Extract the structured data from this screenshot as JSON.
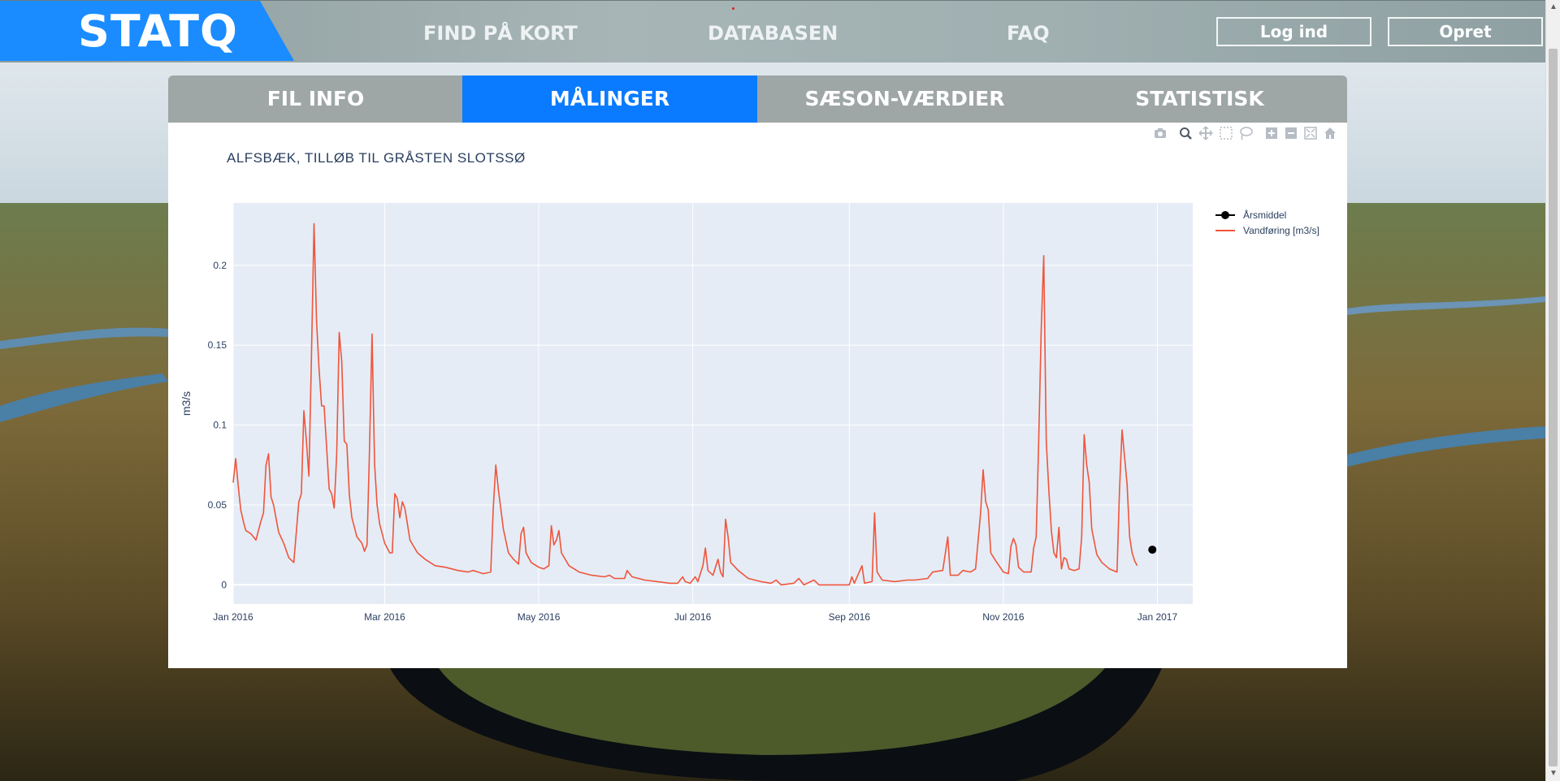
{
  "header": {
    "logo": "STATQ",
    "nav": [
      "FIND PÅ KORT",
      "DATABASEN",
      "FAQ"
    ],
    "login_label": "Log ind",
    "signup_label": "Opret"
  },
  "tabs": [
    {
      "label": "FIL INFO",
      "active": false
    },
    {
      "label": "MÅLINGER",
      "active": true
    },
    {
      "label": "SÆSON-VÆRDIER",
      "active": false
    },
    {
      "label": "STATISTISK",
      "active": false
    }
  ],
  "modebar_icons": [
    "camera-icon",
    "zoom-icon",
    "pan-icon",
    "box-select-icon",
    "lasso-icon",
    "zoom-in-icon",
    "zoom-out-icon",
    "autoscale-icon",
    "reset-axes-icon"
  ],
  "colors": {
    "accent": "#0a7bff",
    "series_line": "#ef553b",
    "plot_bg": "#e5ecf6",
    "marker": "#000000"
  },
  "chart_data": {
    "type": "line",
    "title": "ALFSBÆK, TILLØB TIL GRÅSTEN SLOTSSØ",
    "ylabel": "m3/s",
    "xlabel": "",
    "xlim": [
      "2016-01-01",
      "2017-01-15"
    ],
    "ylim": [
      -0.012,
      0.239
    ],
    "x_ticks": [
      "2016-01-01",
      "2016-03-01",
      "2016-05-01",
      "2016-07-01",
      "2016-09-01",
      "2016-11-01",
      "2017-01-01"
    ],
    "x_tick_labels": [
      "Jan 2016",
      "Mar 2016",
      "May 2016",
      "Jul 2016",
      "Sep 2016",
      "Nov 2016",
      "Jan 2017"
    ],
    "y_ticks": [
      0,
      0.05,
      0.1,
      0.15,
      0.2
    ],
    "y_tick_labels": [
      "0",
      "0.05",
      "0.1",
      "0.15",
      "0.2"
    ],
    "grid": true,
    "legend_position": "top-right",
    "series": [
      {
        "name": "Årsmiddel",
        "type": "markers+lines",
        "color": "#000000",
        "points": [
          [
            "2016-12-30",
            0.022
          ]
        ]
      },
      {
        "name": "Vandføring [m3/s]",
        "type": "line",
        "color": "#ef553b",
        "points": [
          [
            "2016-01-01",
            0.064
          ],
          [
            "2016-01-02",
            0.079
          ],
          [
            "2016-01-03",
            0.062
          ],
          [
            "2016-01-04",
            0.047
          ],
          [
            "2016-01-05",
            0.04
          ],
          [
            "2016-01-06",
            0.034
          ],
          [
            "2016-01-08",
            0.032
          ],
          [
            "2016-01-10",
            0.028
          ],
          [
            "2016-01-12",
            0.04
          ],
          [
            "2016-01-13",
            0.045
          ],
          [
            "2016-01-14",
            0.075
          ],
          [
            "2016-01-15",
            0.082
          ],
          [
            "2016-01-16",
            0.055
          ],
          [
            "2016-01-17",
            0.05
          ],
          [
            "2016-01-19",
            0.033
          ],
          [
            "2016-01-21",
            0.026
          ],
          [
            "2016-01-23",
            0.017
          ],
          [
            "2016-01-25",
            0.014
          ],
          [
            "2016-01-27",
            0.052
          ],
          [
            "2016-01-28",
            0.057
          ],
          [
            "2016-01-29",
            0.109
          ],
          [
            "2016-01-30",
            0.09
          ],
          [
            "2016-01-31",
            0.068
          ],
          [
            "2016-02-01",
            0.142
          ],
          [
            "2016-02-02",
            0.226
          ],
          [
            "2016-02-03",
            0.165
          ],
          [
            "2016-02-04",
            0.135
          ],
          [
            "2016-02-05",
            0.112
          ],
          [
            "2016-02-06",
            0.112
          ],
          [
            "2016-02-08",
            0.06
          ],
          [
            "2016-02-09",
            0.057
          ],
          [
            "2016-02-10",
            0.048
          ],
          [
            "2016-02-11",
            0.082
          ],
          [
            "2016-02-12",
            0.158
          ],
          [
            "2016-02-13",
            0.14
          ],
          [
            "2016-02-14",
            0.09
          ],
          [
            "2016-02-15",
            0.088
          ],
          [
            "2016-02-16",
            0.056
          ],
          [
            "2016-02-17",
            0.042
          ],
          [
            "2016-02-19",
            0.03
          ],
          [
            "2016-02-21",
            0.026
          ],
          [
            "2016-02-22",
            0.021
          ],
          [
            "2016-02-23",
            0.025
          ],
          [
            "2016-02-24",
            0.085
          ],
          [
            "2016-02-25",
            0.157
          ],
          [
            "2016-02-26",
            0.076
          ],
          [
            "2016-02-27",
            0.05
          ],
          [
            "2016-02-28",
            0.038
          ],
          [
            "2016-03-01",
            0.026
          ],
          [
            "2016-03-03",
            0.02
          ],
          [
            "2016-03-04",
            0.02
          ],
          [
            "2016-03-05",
            0.057
          ],
          [
            "2016-03-06",
            0.054
          ],
          [
            "2016-03-07",
            0.042
          ],
          [
            "2016-03-08",
            0.052
          ],
          [
            "2016-03-09",
            0.048
          ],
          [
            "2016-03-11",
            0.028
          ],
          [
            "2016-03-14",
            0.02
          ],
          [
            "2016-03-17",
            0.016
          ],
          [
            "2016-03-21",
            0.012
          ],
          [
            "2016-03-25",
            0.011
          ],
          [
            "2016-03-30",
            0.009
          ],
          [
            "2016-04-03",
            0.008
          ],
          [
            "2016-04-05",
            0.009
          ],
          [
            "2016-04-07",
            0.008
          ],
          [
            "2016-04-09",
            0.007
          ],
          [
            "2016-04-12",
            0.008
          ],
          [
            "2016-04-13",
            0.048
          ],
          [
            "2016-04-14",
            0.075
          ],
          [
            "2016-04-15",
            0.06
          ],
          [
            "2016-04-17",
            0.035
          ],
          [
            "2016-04-19",
            0.02
          ],
          [
            "2016-04-21",
            0.016
          ],
          [
            "2016-04-23",
            0.013
          ],
          [
            "2016-04-24",
            0.032
          ],
          [
            "2016-04-25",
            0.036
          ],
          [
            "2016-04-26",
            0.02
          ],
          [
            "2016-04-28",
            0.014
          ],
          [
            "2016-05-01",
            0.011
          ],
          [
            "2016-05-03",
            0.01
          ],
          [
            "2016-05-05",
            0.012
          ],
          [
            "2016-05-06",
            0.037
          ],
          [
            "2016-05-07",
            0.025
          ],
          [
            "2016-05-08",
            0.028
          ],
          [
            "2016-05-09",
            0.034
          ],
          [
            "2016-05-10",
            0.02
          ],
          [
            "2016-05-13",
            0.012
          ],
          [
            "2016-05-17",
            0.008
          ],
          [
            "2016-05-22",
            0.006
          ],
          [
            "2016-05-27",
            0.005
          ],
          [
            "2016-05-29",
            0.006
          ],
          [
            "2016-05-31",
            0.004
          ],
          [
            "2016-06-04",
            0.004
          ],
          [
            "2016-06-05",
            0.009
          ],
          [
            "2016-06-07",
            0.005
          ],
          [
            "2016-06-12",
            0.003
          ],
          [
            "2016-06-17",
            0.002
          ],
          [
            "2016-06-22",
            0.001
          ],
          [
            "2016-06-25",
            0.001
          ],
          [
            "2016-06-26",
            0.003
          ],
          [
            "2016-06-27",
            0.005
          ],
          [
            "2016-06-28",
            0.002
          ],
          [
            "2016-06-30",
            0.001
          ],
          [
            "2016-07-02",
            0.005
          ],
          [
            "2016-07-03",
            0.002
          ],
          [
            "2016-07-05",
            0.012
          ],
          [
            "2016-07-06",
            0.023
          ],
          [
            "2016-07-07",
            0.009
          ],
          [
            "2016-07-09",
            0.006
          ],
          [
            "2016-07-11",
            0.016
          ],
          [
            "2016-07-12",
            0.008
          ],
          [
            "2016-07-13",
            0.005
          ],
          [
            "2016-07-14",
            0.041
          ],
          [
            "2016-07-15",
            0.03
          ],
          [
            "2016-07-16",
            0.014
          ],
          [
            "2016-07-19",
            0.009
          ],
          [
            "2016-07-23",
            0.004
          ],
          [
            "2016-07-28",
            0.002
          ],
          [
            "2016-08-01",
            0.001
          ],
          [
            "2016-08-03",
            0.003
          ],
          [
            "2016-08-05",
            0.0
          ],
          [
            "2016-08-10",
            0.001
          ],
          [
            "2016-08-12",
            0.004
          ],
          [
            "2016-08-14",
            0.0
          ],
          [
            "2016-08-18",
            0.003
          ],
          [
            "2016-08-20",
            0.0
          ],
          [
            "2016-08-25",
            0.0
          ],
          [
            "2016-08-31",
            0.0
          ],
          [
            "2016-09-01",
            0.0
          ],
          [
            "2016-09-02",
            0.005
          ],
          [
            "2016-09-03",
            0.001
          ],
          [
            "2016-09-06",
            0.012
          ],
          [
            "2016-09-07",
            0.001
          ],
          [
            "2016-09-10",
            0.002
          ],
          [
            "2016-09-11",
            0.045
          ],
          [
            "2016-09-12",
            0.008
          ],
          [
            "2016-09-14",
            0.003
          ],
          [
            "2016-09-19",
            0.002
          ],
          [
            "2016-09-24",
            0.003
          ],
          [
            "2016-09-27",
            0.003
          ],
          [
            "2016-10-02",
            0.004
          ],
          [
            "2016-10-04",
            0.008
          ],
          [
            "2016-10-08",
            0.009
          ],
          [
            "2016-10-10",
            0.03
          ],
          [
            "2016-10-11",
            0.006
          ],
          [
            "2016-10-14",
            0.006
          ],
          [
            "2016-10-16",
            0.009
          ],
          [
            "2016-10-19",
            0.008
          ],
          [
            "2016-10-21",
            0.01
          ],
          [
            "2016-10-23",
            0.045
          ],
          [
            "2016-10-24",
            0.072
          ],
          [
            "2016-10-25",
            0.052
          ],
          [
            "2016-10-26",
            0.047
          ],
          [
            "2016-10-27",
            0.02
          ],
          [
            "2016-10-29",
            0.015
          ],
          [
            "2016-11-01",
            0.008
          ],
          [
            "2016-11-03",
            0.007
          ],
          [
            "2016-11-04",
            0.024
          ],
          [
            "2016-11-05",
            0.029
          ],
          [
            "2016-11-06",
            0.025
          ],
          [
            "2016-11-07",
            0.011
          ],
          [
            "2016-11-09",
            0.008
          ],
          [
            "2016-11-12",
            0.008
          ],
          [
            "2016-11-13",
            0.023
          ],
          [
            "2016-11-14",
            0.03
          ],
          [
            "2016-11-15",
            0.09
          ],
          [
            "2016-11-16",
            0.16
          ],
          [
            "2016-11-17",
            0.206
          ],
          [
            "2016-11-18",
            0.09
          ],
          [
            "2016-11-19",
            0.06
          ],
          [
            "2016-11-20",
            0.034
          ],
          [
            "2016-11-21",
            0.02
          ],
          [
            "2016-11-22",
            0.017
          ],
          [
            "2016-11-23",
            0.036
          ],
          [
            "2016-11-24",
            0.01
          ],
          [
            "2016-11-25",
            0.017
          ],
          [
            "2016-11-26",
            0.016
          ],
          [
            "2016-11-27",
            0.01
          ],
          [
            "2016-11-29",
            0.009
          ],
          [
            "2016-12-01",
            0.01
          ],
          [
            "2016-12-02",
            0.03
          ],
          [
            "2016-12-03",
            0.094
          ],
          [
            "2016-12-04",
            0.075
          ],
          [
            "2016-12-05",
            0.064
          ],
          [
            "2016-12-06",
            0.035
          ],
          [
            "2016-12-08",
            0.019
          ],
          [
            "2016-12-10",
            0.014
          ],
          [
            "2016-12-13",
            0.01
          ],
          [
            "2016-12-16",
            0.008
          ],
          [
            "2016-12-17",
            0.06
          ],
          [
            "2016-12-18",
            0.097
          ],
          [
            "2016-12-19",
            0.08
          ],
          [
            "2016-12-20",
            0.063
          ],
          [
            "2016-12-21",
            0.03
          ],
          [
            "2016-12-22",
            0.02
          ],
          [
            "2016-12-23",
            0.015
          ],
          [
            "2016-12-24",
            0.012
          ]
        ]
      }
    ]
  }
}
